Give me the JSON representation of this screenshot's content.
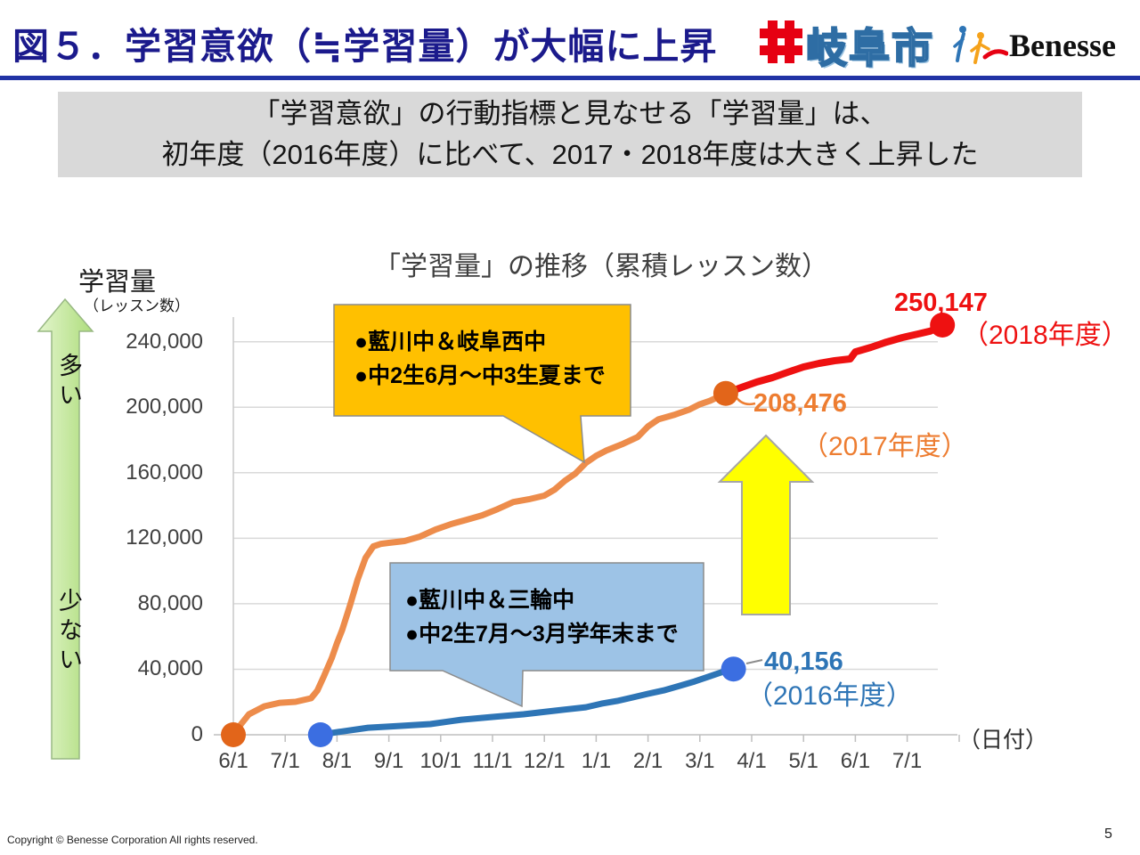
{
  "header": {
    "title": "図５．学習意欲（≒学習量）が大幅に上昇",
    "gifu_logo_text": "岐阜市",
    "benesse_logo_text": "Benesse"
  },
  "subtitle": {
    "line1": "「学習意欲」の行動指標と見なせる「学習量」は、",
    "line2": "初年度（2016年度）に比べて、2017・2018年度は大きく上昇した"
  },
  "chart_data": {
    "type": "line",
    "title": "「学習量」の推移（累積レッスン数）",
    "ylabel": "学習量",
    "ylabel_sub": "（レッスン数）",
    "xlabel": "（日付）",
    "grid": true,
    "ylim": [
      0,
      254000
    ],
    "x_ticks": [
      "6/1",
      "7/1",
      "8/1",
      "9/1",
      "10/1",
      "11/1",
      "12/1",
      "1/1",
      "2/1",
      "3/1",
      "4/1",
      "5/1",
      "6/1",
      "7/1"
    ],
    "y_ticks": [
      {
        "label": "0",
        "value": 0
      },
      {
        "label": "40,000",
        "value": 40000
      },
      {
        "label": "80,000",
        "value": 80000
      },
      {
        "label": "120,000",
        "value": 120000
      },
      {
        "label": "160,000",
        "value": 160000
      },
      {
        "label": "200,000",
        "value": 200000
      },
      {
        "label": "240,000",
        "value": 240000
      }
    ],
    "series": [
      {
        "name": "2016年度",
        "color": "#2e75b6",
        "dot_color": "#3b6ee1",
        "width": 7,
        "dots": "both",
        "end_value": 40156,
        "end_label": "40,156",
        "end_year_label": "（2016年度）",
        "points": [
          [
            1.68,
            0
          ],
          [
            2,
            1600
          ],
          [
            2.6,
            4300
          ],
          [
            3.2,
            5400
          ],
          [
            3.8,
            6500
          ],
          [
            4.4,
            9200
          ],
          [
            5,
            10900
          ],
          [
            5.6,
            12500
          ],
          [
            6.2,
            14700
          ],
          [
            6.8,
            16800
          ],
          [
            7.1,
            19000
          ],
          [
            7.4,
            20600
          ],
          [
            7.7,
            22800
          ],
          [
            8,
            25000
          ],
          [
            8.3,
            27100
          ],
          [
            8.6,
            29800
          ],
          [
            8.9,
            32600
          ],
          [
            9.2,
            35800
          ],
          [
            9.45,
            38500
          ],
          [
            9.65,
            40156
          ]
        ]
      },
      {
        "name": "2017年度",
        "color": "#ed8c4b",
        "dot_color": "#e2651a",
        "width": 7,
        "dots": "both",
        "end_value": 208476,
        "end_label": "208,476",
        "end_year_label": "（2017年度）",
        "points": [
          [
            0,
            0
          ],
          [
            0.15,
            6500
          ],
          [
            0.3,
            12500
          ],
          [
            0.6,
            17400
          ],
          [
            0.9,
            19500
          ],
          [
            1.2,
            20100
          ],
          [
            1.5,
            22300
          ],
          [
            1.62,
            27000
          ],
          [
            1.75,
            36000
          ],
          [
            1.9,
            47000
          ],
          [
            2,
            56000
          ],
          [
            2.1,
            64000
          ],
          [
            2.25,
            79000
          ],
          [
            2.4,
            95000
          ],
          [
            2.55,
            108000
          ],
          [
            2.7,
            115000
          ],
          [
            2.85,
            116600
          ],
          [
            3,
            117200
          ],
          [
            3.3,
            118300
          ],
          [
            3.6,
            121000
          ],
          [
            3.9,
            125300
          ],
          [
            4.2,
            128600
          ],
          [
            4.5,
            131300
          ],
          [
            4.8,
            134000
          ],
          [
            5.1,
            137800
          ],
          [
            5.4,
            142100
          ],
          [
            5.7,
            143800
          ],
          [
            6,
            146000
          ],
          [
            6.2,
            149700
          ],
          [
            6.4,
            155200
          ],
          [
            6.6,
            159500
          ],
          [
            6.8,
            166000
          ],
          [
            7,
            170400
          ],
          [
            7.2,
            173600
          ],
          [
            7.5,
            177400
          ],
          [
            7.8,
            181800
          ],
          [
            8,
            188300
          ],
          [
            8.2,
            192600
          ],
          [
            8.5,
            195300
          ],
          [
            8.8,
            198600
          ],
          [
            9,
            201800
          ],
          [
            9.2,
            204000
          ],
          [
            9.5,
            208476
          ]
        ]
      },
      {
        "name": "2018年度",
        "color": "#ee1111",
        "dot_color": "#ee1111",
        "width": 8,
        "dots": "last",
        "end_value": 250147,
        "end_label": "250,147",
        "end_year_label": "（2018年度）",
        "points": [
          [
            9.5,
            208476
          ],
          [
            9.8,
            212100
          ],
          [
            10.1,
            215400
          ],
          [
            10.4,
            218100
          ],
          [
            10.7,
            221400
          ],
          [
            11,
            224600
          ],
          [
            11.3,
            226800
          ],
          [
            11.6,
            228400
          ],
          [
            11.9,
            229500
          ],
          [
            12,
            233800
          ],
          [
            12.3,
            236600
          ],
          [
            12.6,
            239800
          ],
          [
            12.9,
            242500
          ],
          [
            13.2,
            244700
          ],
          [
            13.45,
            246500
          ],
          [
            13.68,
            250147
          ]
        ]
      }
    ],
    "annotations": {
      "orange_callout": {
        "line1": "●藍川中＆岐阜西中",
        "line2": "●中2生6月～中3生夏まで",
        "color": "#ffc000"
      },
      "blue_callout": {
        "line1": "●藍川中＆三輪中",
        "line2": "●中2生7月～3月学年末まで",
        "color": "#9dc3e6"
      },
      "axis_arrow": {
        "top": "多い",
        "bottom": "少ない",
        "color": "#c5e8a0"
      },
      "emphasis_arrow_color": "#ffff00"
    }
  },
  "footer": {
    "copyright": "Copyright © Benesse Corporation All rights reserved.",
    "page": "5"
  }
}
